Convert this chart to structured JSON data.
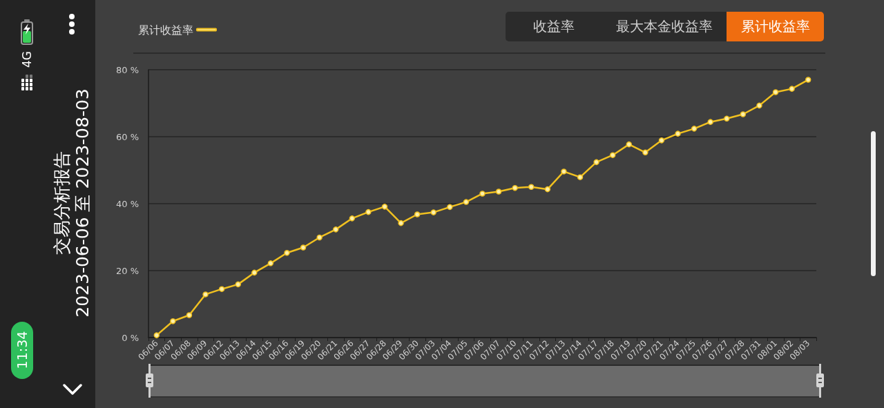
{
  "chart_data": {
    "type": "line",
    "title": "交易分析报告",
    "subtitle": "2023-06-06 至 2023-08-03",
    "categories": [
      "06/06",
      "06/07",
      "06/08",
      "06/09",
      "06/12",
      "06/13",
      "06/14",
      "06/15",
      "06/16",
      "06/19",
      "06/20",
      "06/21",
      "06/26",
      "06/27",
      "06/28",
      "06/29",
      "06/30",
      "07/03",
      "07/04",
      "07/05",
      "07/06",
      "07/07",
      "07/10",
      "07/11",
      "07/12",
      "07/13",
      "07/14",
      "07/17",
      "07/18",
      "07/19",
      "07/20",
      "07/21",
      "07/24",
      "07/25",
      "07/26",
      "07/27",
      "07/28",
      "07/31",
      "08/01",
      "08/02",
      "08/03"
    ],
    "series": [
      {
        "name": "累计收益率",
        "color": "#f0c020",
        "values": [
          0.7,
          4.9,
          6.7,
          12.9,
          14.5,
          15.9,
          19.4,
          22.2,
          25.3,
          26.9,
          29.9,
          32.3,
          35.6,
          37.5,
          39.1,
          34.2,
          36.8,
          37.4,
          39.0,
          40.5,
          43.0,
          43.6,
          44.7,
          45.0,
          44.3,
          49.6,
          47.9,
          52.4,
          54.5,
          57.7,
          55.3,
          58.9,
          60.9,
          62.4,
          64.4,
          65.4,
          66.7,
          69.3,
          73.3,
          74.3,
          77.0
        ]
      }
    ],
    "ylim": [
      0,
      80
    ],
    "yticks": [
      {
        "value": 0,
        "label": "0 %"
      },
      {
        "value": 20,
        "label": "20 %"
      },
      {
        "value": 40,
        "label": "40 %"
      },
      {
        "value": 60,
        "label": "60 %"
      },
      {
        "value": 80,
        "label": "80 %"
      }
    ],
    "grid": "y",
    "legend": "top left",
    "marker": "circle",
    "line_style": "solid",
    "annotations": [
      "收益率",
      "最大本金收益率",
      "累计收益率",
      "4G",
      "11:34"
    ]
  }
}
